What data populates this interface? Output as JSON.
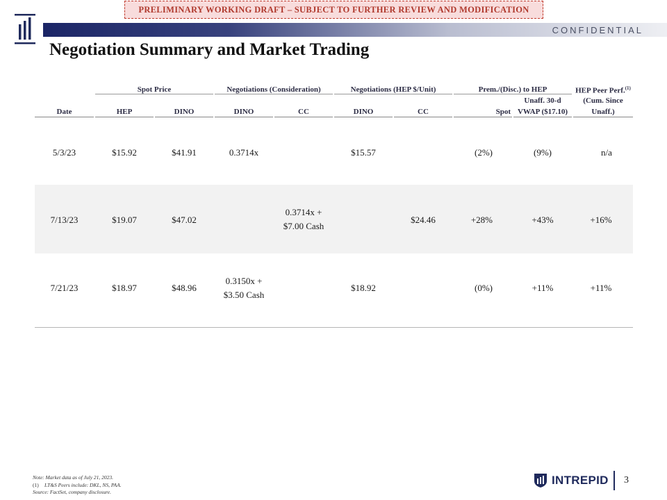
{
  "banner": "PRELIMINARY WORKING DRAFT – SUBJECT TO FURTHER REVIEW AND MODIFICATION",
  "confidential": "CONFIDENTIAL",
  "title": "Negotiation Summary and Market Trading",
  "table": {
    "groups": {
      "spot_price": "Spot Price",
      "neg_consideration": "Negotiations (Consideration)",
      "neg_hep_unit": "Negotiations (HEP $/Unit)",
      "prem_disc": "Prem./(Disc.) to HEP",
      "hep_peer_perf": "HEP Peer Perf.",
      "hep_peer_perf_sup": "(1)"
    },
    "columns": {
      "date": "Date",
      "hep": "HEP",
      "dino": "DINO",
      "neg_dino": "DINO",
      "neg_cc": "CC",
      "unit_dino": "DINO",
      "unit_cc": "CC",
      "spot": "Spot",
      "vwap_line1": "Unaff. 30-d",
      "vwap_line2": "VWAP ($17.10)",
      "peer_line1": "(Cum. Since",
      "peer_line2": "Unaff.)"
    },
    "rows": [
      {
        "date": "5/3/23",
        "hep": "$15.92",
        "dino": "$41.91",
        "neg_dino": [
          "0.3714x"
        ],
        "neg_cc": [],
        "unit_dino": "$15.57",
        "unit_cc": "",
        "spot": "(2%)",
        "vwap": "(9%)",
        "peer": "n/a"
      },
      {
        "date": "7/13/23",
        "hep": "$19.07",
        "dino": "$47.02",
        "neg_dino": [],
        "neg_cc": [
          "0.3714x +",
          "$7.00 Cash"
        ],
        "unit_dino": "",
        "unit_cc": "$24.46",
        "spot": "+28%",
        "vwap": "+43%",
        "peer": "+16%"
      },
      {
        "date": "7/21/23",
        "hep": "$18.97",
        "dino": "$48.96",
        "neg_dino": [
          "0.3150x +",
          "$3.50 Cash"
        ],
        "neg_cc": [],
        "unit_dino": "$18.92",
        "unit_cc": "",
        "spot": "(0%)",
        "vwap": "+11%",
        "peer": "+11%"
      }
    ]
  },
  "notes": {
    "line1": "Note: Market data as of July 21, 2023.",
    "footnote_index": "(1)",
    "footnote_text": "LT&S Peers include: DKL, NS, PAA.",
    "source": "Source: FactSet, company disclosure."
  },
  "footer": {
    "brand": "INTREPID",
    "page_number": "3"
  },
  "colors": {
    "navy": "#1f2a5c",
    "banner_red": "#b03a2e",
    "row_shade": "#f2f2f2"
  },
  "icons": {
    "header_logo": "bars-logo-icon",
    "footer_logo": "shield-logo-icon"
  }
}
